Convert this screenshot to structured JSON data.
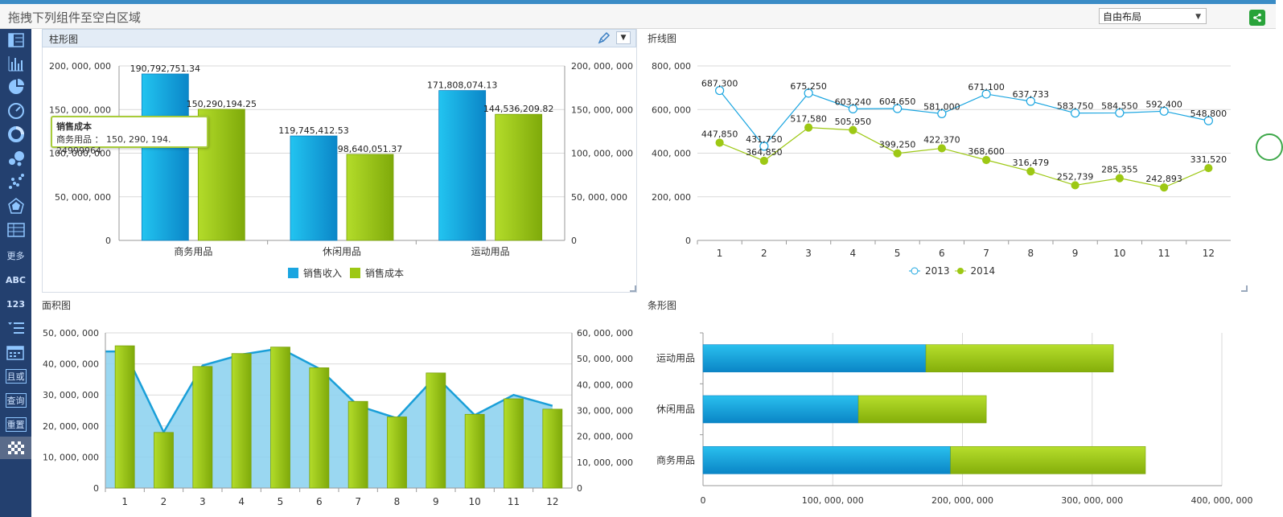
{
  "header": {
    "hint": "拖拽下列组件至空白区域",
    "layout_select": "自由布局",
    "share_icon": "share-icon"
  },
  "sidebar": {
    "items": [
      {
        "icon": "table-icon"
      },
      {
        "icon": "bar-chart-icon"
      },
      {
        "icon": "pie-chart-icon"
      },
      {
        "icon": "gauge-icon"
      },
      {
        "icon": "donut-chart-icon"
      },
      {
        "icon": "bubble-chart-icon"
      },
      {
        "icon": "scatter-chart-icon"
      },
      {
        "icon": "radar-chart-icon"
      },
      {
        "icon": "grid-table-icon"
      },
      {
        "label": "更多"
      },
      {
        "label": "ABC"
      },
      {
        "label": "123"
      },
      {
        "icon": "list-icon"
      },
      {
        "icon": "calendar-icon"
      },
      {
        "label": "且或"
      },
      {
        "label": "查询"
      },
      {
        "label": "重置"
      },
      {
        "icon": "checker-icon"
      }
    ]
  },
  "colors": {
    "blue": "#1aa5e0",
    "green": "#9dc814",
    "area": "#8fd3f0"
  },
  "panels": {
    "bar": {
      "title": "柱形图"
    },
    "line": {
      "title": "折线图"
    },
    "area": {
      "title": "面积图"
    },
    "hbar": {
      "title": "条形图"
    }
  },
  "tooltip": {
    "title": "销售成本",
    "row": "商务用品 ： 150, 290, 194. 24999964"
  },
  "chart_data": [
    {
      "type": "bar",
      "title": "柱形图",
      "categories": [
        "商务用品",
        "休闲用品",
        "运动用品"
      ],
      "series": [
        {
          "name": "销售收入",
          "values": [
            190792751.34,
            119745412.53,
            171808074.13
          ],
          "labels": [
            "190,792,751.34",
            "119,745,412.53",
            "171,808,074.13"
          ]
        },
        {
          "name": "销售成本",
          "values": [
            150290194.25,
            98640051.37,
            144536209.82
          ],
          "labels": [
            "150,290,194.25",
            "98,640,051.37",
            "144,536,209.82"
          ]
        }
      ],
      "ylim": [
        0,
        200000000
      ],
      "yticks": [
        "0",
        "50, 000, 000",
        "100, 000, 000",
        "150, 000, 000",
        "200, 000, 000"
      ],
      "y2ticks": [
        "0",
        "50, 000, 000",
        "100, 000, 000",
        "150, 000, 000",
        "200, 000, 000"
      ],
      "grid": true,
      "legend": "bottom"
    },
    {
      "type": "line",
      "title": "折线图",
      "categories": [
        "1",
        "2",
        "3",
        "4",
        "5",
        "6",
        "7",
        "8",
        "9",
        "10",
        "11",
        "12"
      ],
      "series": [
        {
          "name": "2013",
          "values": [
            687300,
            431750,
            675250,
            603240,
            604650,
            581000,
            671100,
            637733,
            583750,
            584550,
            592400,
            548800
          ],
          "labels": [
            "687,300",
            "431,750",
            "675,250",
            "603,240",
            "604,650",
            "581,000",
            "671,100",
            "637,733",
            "583,750",
            "584,550",
            "592,400",
            "548,800"
          ]
        },
        {
          "name": "2014",
          "values": [
            447850,
            364850,
            517580,
            505950,
            399250,
            422370,
            368600,
            316479,
            252739,
            285355,
            242893,
            331520
          ],
          "labels": [
            "447,850",
            "364,850",
            "517,580",
            "505,950",
            "399,250",
            "422,370",
            "368,600",
            "316,479",
            "252,739",
            "285,355",
            "242,893",
            "331,520"
          ]
        }
      ],
      "ylim": [
        0,
        800000
      ],
      "yticks": [
        "0",
        "200, 000",
        "400, 000",
        "600, 000",
        "800, 000"
      ],
      "grid": true,
      "legend": "bottom"
    },
    {
      "type": "area",
      "title": "面积图",
      "categories": [
        "1",
        "2",
        "3",
        "4",
        "5",
        "6",
        "7",
        "8",
        "9",
        "10",
        "11",
        "12"
      ],
      "area_values": [
        44000000,
        18000000,
        39500000,
        43000000,
        45000000,
        38500000,
        26500000,
        22500000,
        36000000,
        23500000,
        30000000,
        26500000
      ],
      "bar_values": [
        55000000,
        21500000,
        47000000,
        52000000,
        54500000,
        46500000,
        33500000,
        27500000,
        44500000,
        28500000,
        34500000,
        30500000
      ],
      "ylim": [
        0,
        50000000
      ],
      "y2lim": [
        0,
        60000000
      ],
      "yticks": [
        "0",
        "10, 000, 000",
        "20, 000, 000",
        "30, 000, 000",
        "40, 000, 000",
        "50, 000, 000"
      ],
      "y2ticks": [
        "0",
        "10, 000, 000",
        "20, 000, 000",
        "30, 000, 000",
        "40, 000, 000",
        "50, 000, 000",
        "60, 000, 000"
      ],
      "grid": true
    },
    {
      "type": "bar",
      "orientation": "horizontal",
      "stacked": true,
      "title": "条形图",
      "categories": [
        "运动用品",
        "休闲用品",
        "商务用品"
      ],
      "series": [
        {
          "name": "销售收入",
          "values": [
            171808074.13,
            119745412.53,
            190792751.34
          ]
        },
        {
          "name": "销售成本",
          "values": [
            144536209.82,
            98640051.37,
            150290194.25
          ]
        }
      ],
      "xlim": [
        0,
        400000000
      ],
      "xticks": [
        "0",
        "100, 000, 000",
        "200, 000, 000",
        "300, 000, 000",
        "400, 000, 000"
      ],
      "grid": true
    }
  ]
}
